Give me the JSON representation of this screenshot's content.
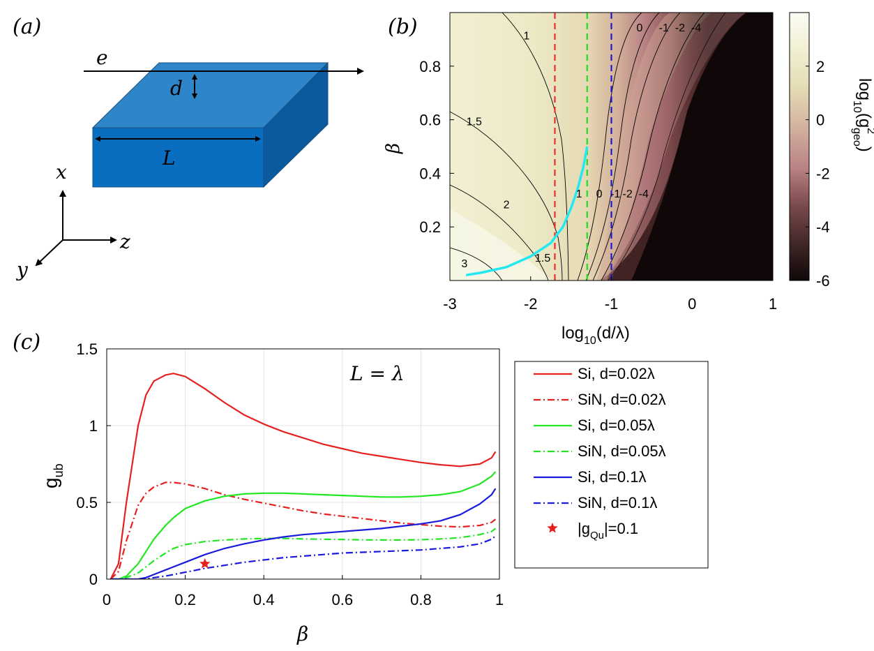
{
  "panels": {
    "a": {
      "label": "(a)",
      "beam_label": "e",
      "thickness_label": "d",
      "length_label": "L",
      "axes": {
        "x": "x",
        "y": "y",
        "z": "z"
      },
      "colors": {
        "top": "#2e86c9",
        "front": "#0a6ec0",
        "side": "#0b5a9e"
      }
    },
    "b": {
      "label": "(b)",
      "colorbar_label_prefix": "log",
      "colorbar_label_sub": "10",
      "colorbar_label_g": "(g",
      "colorbar_label_sup": "2",
      "colorbar_label_subgeo": "geo",
      "colorbar_label_close": ")"
    },
    "c": {
      "label": "(c)",
      "annotation": "L = λ",
      "ylabel_main": "g",
      "ylabel_sub": "ub",
      "marker_legend_prefix": "|g",
      "marker_legend_sub": "Qu",
      "marker_legend_suffix": "|=0.1"
    }
  },
  "chart_data": [
    {
      "id": "b",
      "type": "heatmap",
      "title": "",
      "xlabel": "log10(d/λ)",
      "xlabel_parts": {
        "prefix": "log",
        "sub": "10",
        "rest": "(d/λ)"
      },
      "ylabel": "β",
      "xlim": [
        -3,
        1
      ],
      "ylim": [
        0,
        1
      ],
      "xticks": [
        -3,
        -2,
        -1,
        0,
        1
      ],
      "xtick_labels": [
        "-3",
        "-2",
        "-1",
        "0",
        "1"
      ],
      "yticks": [
        0.2,
        0.4,
        0.6,
        0.8
      ],
      "ytick_labels": [
        "0.2",
        "0.4",
        "0.6",
        "0.8"
      ],
      "colorbar": {
        "min": -6,
        "max": 4,
        "ticks": [
          -6,
          -4,
          -2,
          0,
          2
        ],
        "tick_labels": [
          "-6",
          "-4",
          "-2",
          "0",
          "2"
        ]
      },
      "contour_levels": [
        3,
        2,
        1.5,
        1,
        0,
        -1,
        -2,
        -4
      ],
      "contour_labels_upper": [
        {
          "text": "1",
          "x": -2.05,
          "y": 0.9
        },
        {
          "text": "1.5",
          "x": -2.7,
          "y": 0.58
        },
        {
          "text": "0",
          "x": -0.65,
          "y": 0.93
        },
        {
          "text": "-1",
          "x": -0.35,
          "y": 0.93
        },
        {
          "text": "-2",
          "x": -0.15,
          "y": 0.93
        },
        {
          "text": "-4",
          "x": 0.05,
          "y": 0.93
        }
      ],
      "contour_labels_lower": [
        {
          "text": "2",
          "x": -2.3,
          "y": 0.27
        },
        {
          "text": "3",
          "x": -2.82,
          "y": 0.05
        },
        {
          "text": "1.5",
          "x": -1.85,
          "y": 0.07
        },
        {
          "text": "1",
          "x": -1.4,
          "y": 0.31
        },
        {
          "text": "0",
          "x": -1.15,
          "y": 0.31
        },
        {
          "text": "-1",
          "x": -0.95,
          "y": 0.31
        },
        {
          "text": "-2",
          "x": -0.8,
          "y": 0.31
        },
        {
          "text": "-4",
          "x": -0.6,
          "y": 0.31
        }
      ],
      "vertical_lines": [
        {
          "x": -1.7,
          "color": "#e6302f"
        },
        {
          "x": -1.3,
          "color": "#22dd22"
        },
        {
          "x": -1.0,
          "color": "#1a1acc"
        }
      ],
      "cyan_curve": {
        "color": "#22e8f0",
        "x": [
          -2.8,
          -2.6,
          -2.3,
          -2.0,
          -1.75,
          -1.6,
          -1.5,
          -1.42,
          -1.35,
          -1.3
        ],
        "y": [
          0.02,
          0.03,
          0.05,
          0.09,
          0.14,
          0.2,
          0.27,
          0.34,
          0.42,
          0.5
        ]
      }
    },
    {
      "id": "c",
      "type": "line",
      "title": "",
      "xlabel": "β",
      "ylabel": "g_ub",
      "xlim": [
        0,
        1
      ],
      "ylim": [
        0,
        1.5
      ],
      "xticks": [
        0,
        0.2,
        0.4,
        0.6,
        0.8,
        1
      ],
      "xtick_labels": [
        "0",
        "0.2",
        "0.4",
        "0.6",
        "0.8",
        "1"
      ],
      "yticks": [
        0,
        0.5,
        1,
        1.5
      ],
      "ytick_labels": [
        "0",
        "0.5",
        "1",
        "1.5"
      ],
      "grid": true,
      "legend_position": "right",
      "x": [
        0.01,
        0.03,
        0.05,
        0.08,
        0.1,
        0.12,
        0.15,
        0.17,
        0.2,
        0.25,
        0.3,
        0.35,
        0.4,
        0.45,
        0.5,
        0.55,
        0.6,
        0.65,
        0.7,
        0.75,
        0.8,
        0.85,
        0.9,
        0.95,
        0.98,
        0.99
      ],
      "series": [
        {
          "name": "Si, d=0.02",
          "legend": "Si, d=0.02λ",
          "color": "#e6201f",
          "dash": "solid",
          "values": [
            0.0,
            0.1,
            0.5,
            1.0,
            1.2,
            1.29,
            1.33,
            1.34,
            1.32,
            1.24,
            1.15,
            1.07,
            1.01,
            0.96,
            0.92,
            0.88,
            0.85,
            0.82,
            0.8,
            0.78,
            0.76,
            0.745,
            0.735,
            0.75,
            0.79,
            0.83
          ]
        },
        {
          "name": "SiN, d=0.02",
          "legend": "SiN, d=0.02λ",
          "color": "#e6201f",
          "dash": "dashdot",
          "values": [
            0.0,
            0.05,
            0.25,
            0.48,
            0.56,
            0.6,
            0.63,
            0.63,
            0.62,
            0.59,
            0.55,
            0.52,
            0.495,
            0.47,
            0.445,
            0.425,
            0.41,
            0.395,
            0.38,
            0.365,
            0.355,
            0.345,
            0.34,
            0.35,
            0.37,
            0.39
          ]
        },
        {
          "name": "Si, d=0.05",
          "legend": "Si, d=0.05λ",
          "color": "#22e622",
          "dash": "solid",
          "values": [
            0.0,
            0.0,
            0.02,
            0.1,
            0.18,
            0.26,
            0.35,
            0.4,
            0.46,
            0.51,
            0.54,
            0.555,
            0.56,
            0.56,
            0.555,
            0.55,
            0.545,
            0.54,
            0.535,
            0.535,
            0.54,
            0.55,
            0.57,
            0.62,
            0.67,
            0.7
          ]
        },
        {
          "name": "SiN, d=0.05",
          "legend": "SiN, d=0.05λ",
          "color": "#22e622",
          "dash": "dashdot",
          "values": [
            0.0,
            0.0,
            0.01,
            0.04,
            0.08,
            0.12,
            0.17,
            0.2,
            0.225,
            0.245,
            0.255,
            0.262,
            0.265,
            0.265,
            0.262,
            0.26,
            0.258,
            0.256,
            0.255,
            0.255,
            0.257,
            0.262,
            0.27,
            0.29,
            0.31,
            0.33
          ]
        },
        {
          "name": "Si, d=0.1",
          "legend": "Si, d=0.1λ",
          "color": "#1a1add",
          "dash": "solid",
          "values": [
            0.0,
            0.0,
            0.0,
            0.0,
            0.01,
            0.03,
            0.06,
            0.08,
            0.11,
            0.16,
            0.2,
            0.23,
            0.255,
            0.275,
            0.29,
            0.3,
            0.31,
            0.32,
            0.33,
            0.345,
            0.36,
            0.38,
            0.42,
            0.49,
            0.55,
            0.59
          ]
        },
        {
          "name": "SiN, d=0.1",
          "legend": "SiN, d=0.1λ",
          "color": "#1a1add",
          "dash": "dashdot",
          "values": [
            0.0,
            0.0,
            0.0,
            0.0,
            0.0,
            0.01,
            0.02,
            0.03,
            0.045,
            0.07,
            0.09,
            0.11,
            0.125,
            0.14,
            0.15,
            0.16,
            0.17,
            0.175,
            0.18,
            0.185,
            0.19,
            0.2,
            0.21,
            0.23,
            0.26,
            0.28
          ]
        }
      ],
      "marker": {
        "x": 0.25,
        "y": 0.1,
        "color": "#e6201f",
        "legend": "|gQu|=0.1"
      }
    }
  ]
}
